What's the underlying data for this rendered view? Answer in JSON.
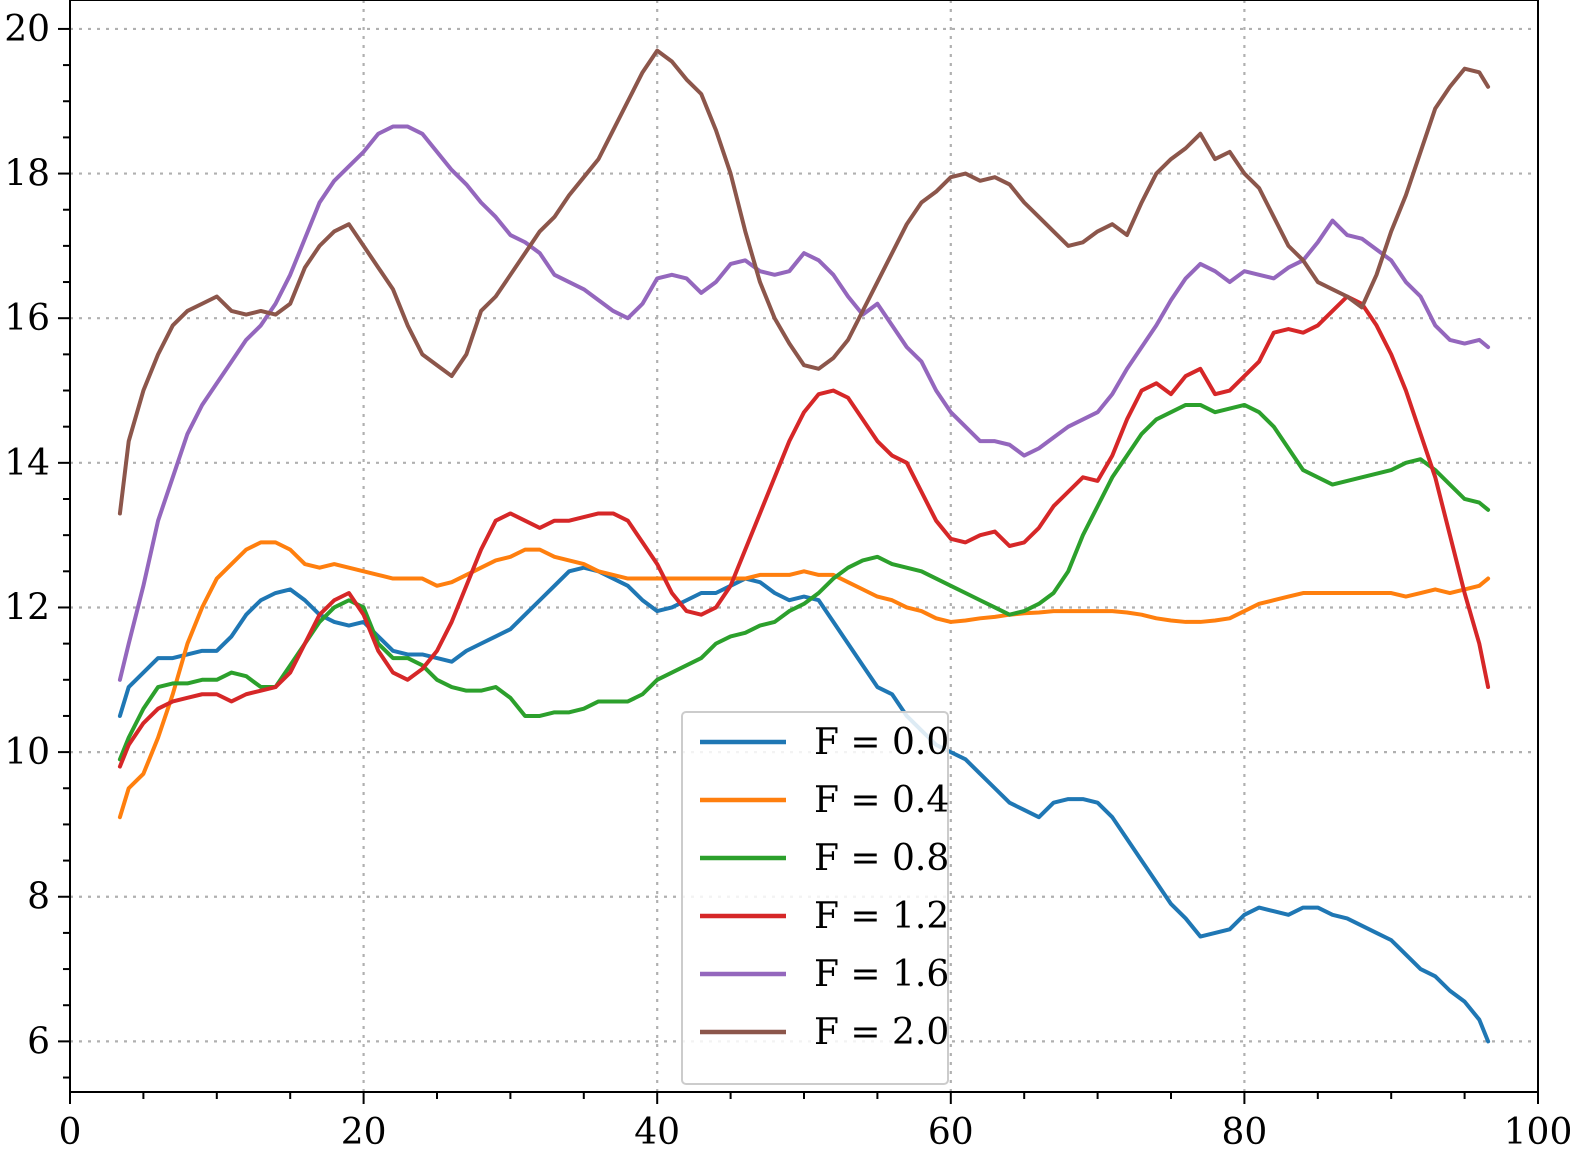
{
  "chart_data": {
    "type": "line",
    "title": "",
    "xlabel": "",
    "ylabel": "",
    "xlim": [
      0,
      100
    ],
    "ylim": [
      5.3,
      20.4
    ],
    "xticks": [
      0,
      20,
      40,
      60,
      80,
      100
    ],
    "yticks": [
      6,
      8,
      10,
      12,
      14,
      16,
      18,
      20
    ],
    "x_minor_step": 5,
    "y_minor_step": 0.5,
    "grid": true,
    "legend_position": "bottom-center",
    "series": [
      {
        "name": "F = 0.0",
        "color": "#1f77b4",
        "x": [
          3.4,
          4,
          5,
          6,
          7,
          8,
          9,
          10,
          11,
          12,
          13,
          14,
          15,
          16,
          17,
          18,
          19,
          20,
          21,
          22,
          23,
          24,
          25,
          26,
          27,
          28,
          29,
          30,
          31,
          32,
          33,
          34,
          35,
          36,
          37,
          38,
          39,
          40,
          41,
          42,
          43,
          44,
          45,
          46,
          47,
          48,
          49,
          50,
          51,
          52,
          53,
          54,
          55,
          56,
          57,
          58,
          59,
          60,
          61,
          62,
          63,
          64,
          65,
          66,
          67,
          68,
          69,
          70,
          71,
          72,
          73,
          74,
          75,
          76,
          77,
          78,
          79,
          80,
          81,
          82,
          83,
          84,
          85,
          86,
          87,
          88,
          89,
          90,
          91,
          92,
          93,
          94,
          95,
          96,
          96.6
        ],
        "y": [
          10.5,
          10.9,
          11.1,
          11.3,
          11.3,
          11.35,
          11.4,
          11.4,
          11.6,
          11.9,
          12.1,
          12.2,
          12.25,
          12.1,
          11.9,
          11.8,
          11.75,
          11.8,
          11.6,
          11.4,
          11.35,
          11.35,
          11.3,
          11.25,
          11.4,
          11.5,
          11.6,
          11.7,
          11.9,
          12.1,
          12.3,
          12.5,
          12.55,
          12.5,
          12.4,
          12.3,
          12.1,
          11.95,
          12.0,
          12.1,
          12.2,
          12.2,
          12.3,
          12.4,
          12.35,
          12.2,
          12.1,
          12.15,
          12.1,
          11.8,
          11.5,
          11.2,
          10.9,
          10.8,
          10.5,
          10.3,
          10.1,
          10.0,
          9.9,
          9.7,
          9.5,
          9.3,
          9.2,
          9.1,
          9.3,
          9.35,
          9.35,
          9.3,
          9.1,
          8.8,
          8.5,
          8.2,
          7.9,
          7.7,
          7.45,
          7.5,
          7.55,
          7.75,
          7.85,
          7.8,
          7.75,
          7.85,
          7.85,
          7.75,
          7.7,
          7.6,
          7.5,
          7.4,
          7.2,
          7.0,
          6.9,
          6.7,
          6.55,
          6.3,
          6.0
        ]
      },
      {
        "name": "F = 0.4",
        "color": "#ff7f0e",
        "x": [
          3.4,
          4,
          5,
          6,
          7,
          8,
          9,
          10,
          11,
          12,
          13,
          14,
          15,
          16,
          17,
          18,
          19,
          20,
          21,
          22,
          23,
          24,
          25,
          26,
          27,
          28,
          29,
          30,
          31,
          32,
          33,
          34,
          35,
          36,
          37,
          38,
          39,
          40,
          41,
          42,
          43,
          44,
          45,
          46,
          47,
          48,
          49,
          50,
          51,
          52,
          53,
          54,
          55,
          56,
          57,
          58,
          59,
          60,
          61,
          62,
          63,
          64,
          65,
          66,
          67,
          68,
          69,
          70,
          71,
          72,
          73,
          74,
          75,
          76,
          77,
          78,
          79,
          80,
          81,
          82,
          83,
          84,
          85,
          86,
          87,
          88,
          89,
          90,
          91,
          92,
          93,
          94,
          95,
          96,
          96.6
        ],
        "y": [
          9.1,
          9.5,
          9.7,
          10.2,
          10.8,
          11.5,
          12.0,
          12.4,
          12.6,
          12.8,
          12.9,
          12.9,
          12.8,
          12.6,
          12.55,
          12.6,
          12.55,
          12.5,
          12.45,
          12.4,
          12.4,
          12.4,
          12.3,
          12.35,
          12.45,
          12.55,
          12.65,
          12.7,
          12.8,
          12.8,
          12.7,
          12.65,
          12.6,
          12.5,
          12.45,
          12.4,
          12.4,
          12.4,
          12.4,
          12.4,
          12.4,
          12.4,
          12.4,
          12.4,
          12.45,
          12.45,
          12.45,
          12.5,
          12.45,
          12.45,
          12.35,
          12.25,
          12.15,
          12.1,
          12.0,
          11.95,
          11.85,
          11.8,
          11.82,
          11.85,
          11.87,
          11.9,
          11.92,
          11.93,
          11.95,
          11.95,
          11.95,
          11.95,
          11.95,
          11.93,
          11.9,
          11.85,
          11.82,
          11.8,
          11.8,
          11.82,
          11.85,
          11.95,
          12.05,
          12.1,
          12.15,
          12.2,
          12.2,
          12.2,
          12.2,
          12.2,
          12.2,
          12.2,
          12.15,
          12.2,
          12.25,
          12.2,
          12.25,
          12.3,
          12.4
        ]
      },
      {
        "name": "F = 0.8",
        "color": "#2ca02c",
        "x": [
          3.4,
          4,
          5,
          6,
          7,
          8,
          9,
          10,
          11,
          12,
          13,
          14,
          15,
          16,
          17,
          18,
          19,
          20,
          21,
          22,
          23,
          24,
          25,
          26,
          27,
          28,
          29,
          30,
          31,
          32,
          33,
          34,
          35,
          36,
          37,
          38,
          39,
          40,
          41,
          42,
          43,
          44,
          45,
          46,
          47,
          48,
          49,
          50,
          51,
          52,
          53,
          54,
          55,
          56,
          57,
          58,
          59,
          60,
          61,
          62,
          63,
          64,
          65,
          66,
          67,
          68,
          69,
          70,
          71,
          72,
          73,
          74,
          75,
          76,
          77,
          78,
          79,
          80,
          81,
          82,
          83,
          84,
          85,
          86,
          87,
          88,
          89,
          90,
          91,
          92,
          93,
          94,
          95,
          96,
          96.6
        ],
        "y": [
          9.9,
          10.2,
          10.6,
          10.9,
          10.95,
          10.95,
          11.0,
          11.0,
          11.1,
          11.05,
          10.9,
          10.9,
          11.2,
          11.5,
          11.8,
          12.0,
          12.1,
          12.0,
          11.5,
          11.3,
          11.3,
          11.2,
          11.0,
          10.9,
          10.85,
          10.85,
          10.9,
          10.75,
          10.5,
          10.5,
          10.55,
          10.55,
          10.6,
          10.7,
          10.7,
          10.7,
          10.8,
          11.0,
          11.1,
          11.2,
          11.3,
          11.5,
          11.6,
          11.65,
          11.75,
          11.8,
          11.95,
          12.05,
          12.2,
          12.4,
          12.55,
          12.65,
          12.7,
          12.6,
          12.55,
          12.5,
          12.4,
          12.3,
          12.2,
          12.1,
          12.0,
          11.9,
          11.95,
          12.05,
          12.2,
          12.5,
          13.0,
          13.4,
          13.8,
          14.1,
          14.4,
          14.6,
          14.7,
          14.8,
          14.8,
          14.7,
          14.75,
          14.8,
          14.7,
          14.5,
          14.2,
          13.9,
          13.8,
          13.7,
          13.75,
          13.8,
          13.85,
          13.9,
          14.0,
          14.05,
          13.9,
          13.7,
          13.5,
          13.45,
          13.35
        ]
      },
      {
        "name": "F = 1.2",
        "color": "#d62728",
        "x": [
          3.4,
          4,
          5,
          6,
          7,
          8,
          9,
          10,
          11,
          12,
          13,
          14,
          15,
          16,
          17,
          18,
          19,
          20,
          21,
          22,
          23,
          24,
          25,
          26,
          27,
          28,
          29,
          30,
          31,
          32,
          33,
          34,
          35,
          36,
          37,
          38,
          39,
          40,
          41,
          42,
          43,
          44,
          45,
          46,
          47,
          48,
          49,
          50,
          51,
          52,
          53,
          54,
          55,
          56,
          57,
          58,
          59,
          60,
          61,
          62,
          63,
          64,
          65,
          66,
          67,
          68,
          69,
          70,
          71,
          72,
          73,
          74,
          75,
          76,
          77,
          78,
          79,
          80,
          81,
          82,
          83,
          84,
          85,
          86,
          87,
          88,
          89,
          90,
          91,
          92,
          93,
          94,
          95,
          96,
          96.6
        ],
        "y": [
          9.8,
          10.1,
          10.4,
          10.6,
          10.7,
          10.75,
          10.8,
          10.8,
          10.7,
          10.8,
          10.85,
          10.9,
          11.1,
          11.5,
          11.9,
          12.1,
          12.2,
          11.9,
          11.4,
          11.1,
          11.0,
          11.15,
          11.4,
          11.8,
          12.3,
          12.8,
          13.2,
          13.3,
          13.2,
          13.1,
          13.2,
          13.2,
          13.25,
          13.3,
          13.3,
          13.2,
          12.9,
          12.6,
          12.2,
          11.95,
          11.9,
          12.0,
          12.3,
          12.8,
          13.3,
          13.8,
          14.3,
          14.7,
          14.95,
          15.0,
          14.9,
          14.6,
          14.3,
          14.1,
          14.0,
          13.6,
          13.2,
          12.95,
          12.9,
          13.0,
          13.05,
          12.85,
          12.9,
          13.1,
          13.4,
          13.6,
          13.8,
          13.75,
          14.1,
          14.6,
          15.0,
          15.1,
          14.95,
          15.2,
          15.3,
          14.95,
          15.0,
          15.2,
          15.4,
          15.8,
          15.85,
          15.8,
          15.9,
          16.1,
          16.3,
          16.2,
          15.9,
          15.5,
          15.0,
          14.4,
          13.8,
          13.0,
          12.2,
          11.5,
          10.9
        ]
      },
      {
        "name": "F = 1.6",
        "color": "#9467bd",
        "x": [
          3.4,
          4,
          5,
          6,
          7,
          8,
          9,
          10,
          11,
          12,
          13,
          14,
          15,
          16,
          17,
          18,
          19,
          20,
          21,
          22,
          23,
          24,
          25,
          26,
          27,
          28,
          29,
          30,
          31,
          32,
          33,
          34,
          35,
          36,
          37,
          38,
          39,
          40,
          41,
          42,
          43,
          44,
          45,
          46,
          47,
          48,
          49,
          50,
          51,
          52,
          53,
          54,
          55,
          56,
          57,
          58,
          59,
          60,
          61,
          62,
          63,
          64,
          65,
          66,
          67,
          68,
          69,
          70,
          71,
          72,
          73,
          74,
          75,
          76,
          77,
          78,
          79,
          80,
          81,
          82,
          83,
          84,
          85,
          86,
          87,
          88,
          89,
          90,
          91,
          92,
          93,
          94,
          95,
          96,
          96.6
        ],
        "y": [
          11.0,
          11.5,
          12.3,
          13.2,
          13.8,
          14.4,
          14.8,
          15.1,
          15.4,
          15.7,
          15.9,
          16.2,
          16.6,
          17.1,
          17.6,
          17.9,
          18.1,
          18.3,
          18.55,
          18.65,
          18.65,
          18.55,
          18.3,
          18.05,
          17.85,
          17.6,
          17.4,
          17.15,
          17.05,
          16.9,
          16.6,
          16.5,
          16.4,
          16.25,
          16.1,
          16.0,
          16.2,
          16.55,
          16.6,
          16.55,
          16.35,
          16.5,
          16.75,
          16.8,
          16.65,
          16.6,
          16.65,
          16.9,
          16.8,
          16.6,
          16.3,
          16.05,
          16.2,
          15.9,
          15.6,
          15.4,
          15.0,
          14.7,
          14.5,
          14.3,
          14.3,
          14.25,
          14.1,
          14.2,
          14.35,
          14.5,
          14.6,
          14.7,
          14.95,
          15.3,
          15.6,
          15.9,
          16.25,
          16.55,
          16.75,
          16.65,
          16.5,
          16.65,
          16.6,
          16.55,
          16.7,
          16.8,
          17.05,
          17.35,
          17.15,
          17.1,
          16.95,
          16.8,
          16.5,
          16.3,
          15.9,
          15.7,
          15.65,
          15.7,
          15.6
        ]
      },
      {
        "name": "F = 2.0",
        "color": "#8c564b",
        "x": [
          3.4,
          4,
          5,
          6,
          7,
          8,
          9,
          10,
          11,
          12,
          13,
          14,
          15,
          16,
          17,
          18,
          19,
          20,
          21,
          22,
          23,
          24,
          25,
          26,
          27,
          28,
          29,
          30,
          31,
          32,
          33,
          34,
          35,
          36,
          37,
          38,
          39,
          40,
          41,
          42,
          43,
          44,
          45,
          46,
          47,
          48,
          49,
          50,
          51,
          52,
          53,
          54,
          55,
          56,
          57,
          58,
          59,
          60,
          61,
          62,
          63,
          64,
          65,
          66,
          67,
          68,
          69,
          70,
          71,
          72,
          73,
          74,
          75,
          76,
          77,
          78,
          79,
          80,
          81,
          82,
          83,
          84,
          85,
          86,
          87,
          88,
          89,
          90,
          91,
          92,
          93,
          94,
          95,
          96,
          96.6
        ],
        "y": [
          13.3,
          14.3,
          15.0,
          15.5,
          15.9,
          16.1,
          16.2,
          16.3,
          16.1,
          16.05,
          16.1,
          16.05,
          16.2,
          16.7,
          17.0,
          17.2,
          17.3,
          17.0,
          16.7,
          16.4,
          15.9,
          15.5,
          15.35,
          15.2,
          15.5,
          16.1,
          16.3,
          16.6,
          16.9,
          17.2,
          17.4,
          17.7,
          17.95,
          18.2,
          18.6,
          19.0,
          19.4,
          19.7,
          19.55,
          19.3,
          19.1,
          18.6,
          18.0,
          17.2,
          16.5,
          16.0,
          15.65,
          15.35,
          15.3,
          15.45,
          15.7,
          16.1,
          16.5,
          16.9,
          17.3,
          17.6,
          17.75,
          17.95,
          18.0,
          17.9,
          17.95,
          17.85,
          17.6,
          17.4,
          17.2,
          17.0,
          17.05,
          17.2,
          17.3,
          17.15,
          17.6,
          18.0,
          18.2,
          18.35,
          18.55,
          18.2,
          18.3,
          18.0,
          17.8,
          17.4,
          17.0,
          16.8,
          16.5,
          16.4,
          16.3,
          16.15,
          16.6,
          17.2,
          17.7,
          18.3,
          18.9,
          19.2,
          19.45,
          19.4,
          19.2
        ]
      }
    ]
  }
}
